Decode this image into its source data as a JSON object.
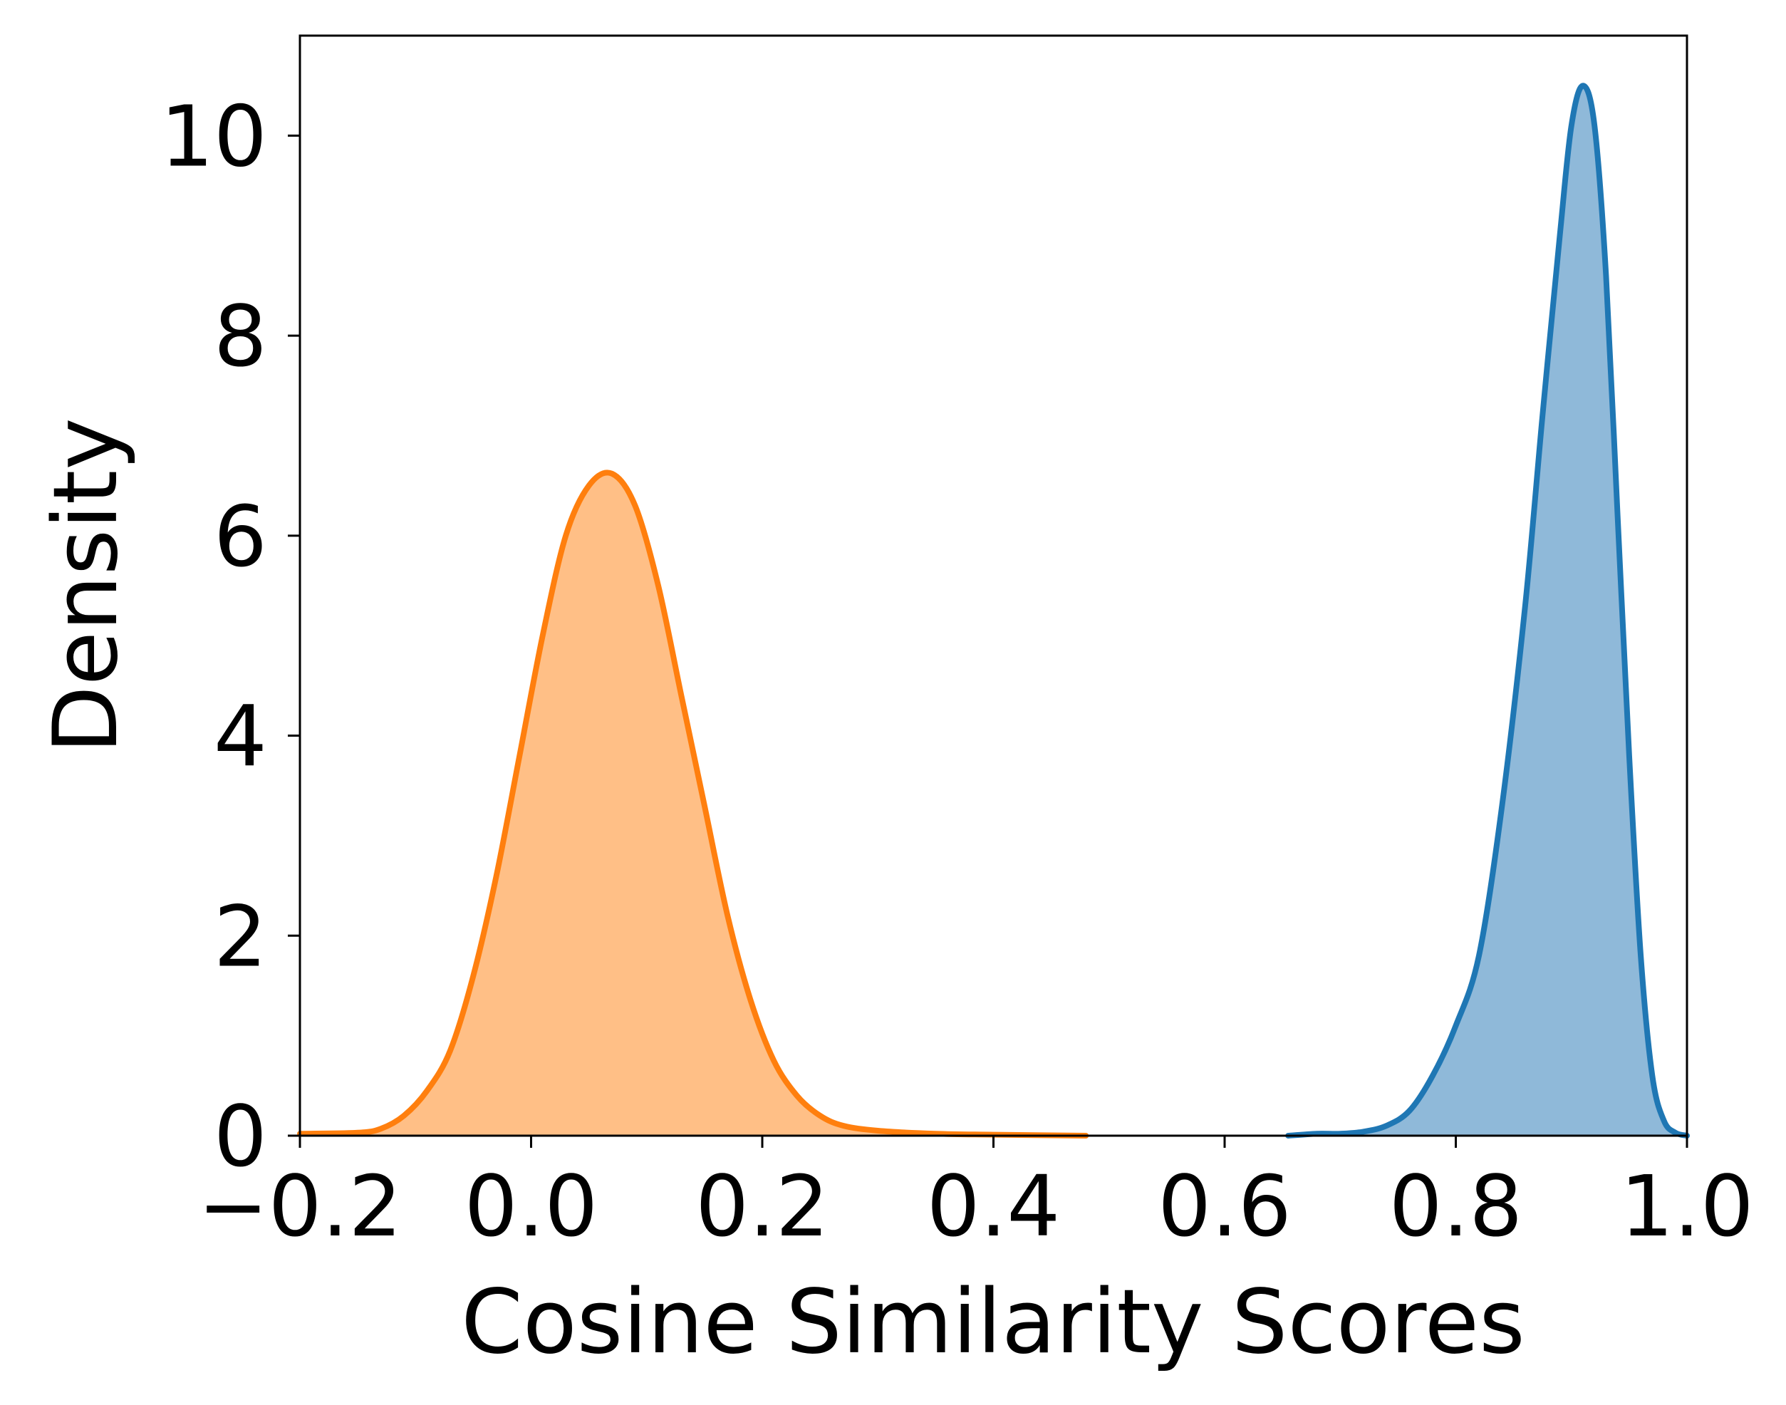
{
  "chart_data": {
    "type": "area",
    "title": "",
    "xlabel": "Cosine Similarity Scores",
    "ylabel": "Density",
    "xlim": [
      -0.2,
      1.0
    ],
    "ylim": [
      0,
      11
    ],
    "x_ticks": [
      -0.2,
      0.0,
      0.2,
      0.4,
      0.6,
      0.8,
      1.0
    ],
    "x_tick_labels": [
      "−0.2",
      "0.0",
      "0.2",
      "0.4",
      "0.6",
      "0.8",
      "1.0"
    ],
    "y_ticks": [
      0,
      2,
      4,
      6,
      8,
      10
    ],
    "y_tick_labels": [
      "0",
      "2",
      "4",
      "6",
      "8",
      "10"
    ],
    "grid": false,
    "legend": "none",
    "series": [
      {
        "color": "#ff7f0e",
        "fill": "#ffbf86",
        "points": [
          [
            -0.2,
            0.02
          ],
          [
            -0.15,
            0.03
          ],
          [
            -0.13,
            0.07
          ],
          [
            -0.11,
            0.2
          ],
          [
            -0.09,
            0.45
          ],
          [
            -0.07,
            0.85
          ],
          [
            -0.05,
            1.6
          ],
          [
            -0.03,
            2.6
          ],
          [
            -0.01,
            3.8
          ],
          [
            0.01,
            5.0
          ],
          [
            0.03,
            6.0
          ],
          [
            0.05,
            6.5
          ],
          [
            0.07,
            6.62
          ],
          [
            0.09,
            6.3
          ],
          [
            0.11,
            5.5
          ],
          [
            0.13,
            4.4
          ],
          [
            0.15,
            3.3
          ],
          [
            0.17,
            2.2
          ],
          [
            0.19,
            1.35
          ],
          [
            0.21,
            0.75
          ],
          [
            0.23,
            0.4
          ],
          [
            0.25,
            0.2
          ],
          [
            0.27,
            0.1
          ],
          [
            0.3,
            0.05
          ],
          [
            0.35,
            0.02
          ],
          [
            0.4,
            0.01
          ],
          [
            0.48,
            0.0
          ]
        ]
      },
      {
        "color": "#1f77b4",
        "fill": "#8fb9d9",
        "points": [
          [
            0.655,
            0.0
          ],
          [
            0.68,
            0.02
          ],
          [
            0.7,
            0.02
          ],
          [
            0.72,
            0.04
          ],
          [
            0.74,
            0.1
          ],
          [
            0.76,
            0.25
          ],
          [
            0.78,
            0.6
          ],
          [
            0.8,
            1.1
          ],
          [
            0.82,
            1.8
          ],
          [
            0.84,
            3.3
          ],
          [
            0.86,
            5.3
          ],
          [
            0.875,
            7.2
          ],
          [
            0.89,
            9.0
          ],
          [
            0.9,
            10.1
          ],
          [
            0.91,
            10.5
          ],
          [
            0.92,
            10.1
          ],
          [
            0.93,
            8.6
          ],
          [
            0.94,
            6.2
          ],
          [
            0.95,
            3.8
          ],
          [
            0.96,
            1.8
          ],
          [
            0.97,
            0.6
          ],
          [
            0.98,
            0.15
          ],
          [
            0.99,
            0.03
          ],
          [
            1.0,
            0.0
          ]
        ]
      }
    ]
  }
}
